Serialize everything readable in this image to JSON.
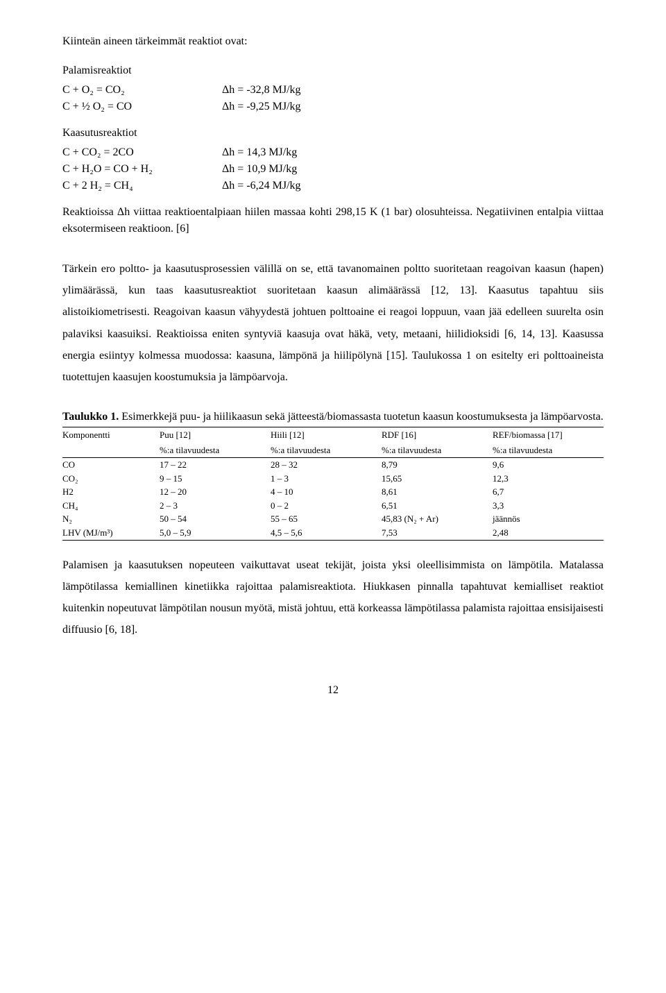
{
  "intro": "Kiinteän aineen tärkeimmät reaktiot ovat:",
  "combustion_heading": "Palamisreaktiot",
  "combustion": [
    {
      "lhs": "C + O₂ = CO₂",
      "rhs": "Δh = -32,8 MJ/kg"
    },
    {
      "lhs": "C + ½ O₂ = CO",
      "rhs": "Δh = -9,25 MJ/kg"
    }
  ],
  "gasif_heading": "Kaasutusreaktiot",
  "gasif": [
    {
      "lhs": "C + CO₂ = 2CO",
      "rhs": "Δh = 14,3 MJ/kg"
    },
    {
      "lhs": "C + H₂O = CO + H₂",
      "rhs": "Δh = 10,9 MJ/kg"
    },
    {
      "lhs": "C + 2 H₂ = CH₄",
      "rhs": "Δh = -6,24 MJ/kg"
    }
  ],
  "para_after_rx": "Reaktioissa Δh viittaa reaktioentalpiaan hiilen massaa kohti 298,15 K (1 bar) olosuhteissa. Negatiivinen entalpia viittaa eksotermiseen reaktioon. [6]",
  "para_main": "Tärkein ero poltto- ja kaasutusprosessien välillä on se, että tavanomainen poltto suoritetaan reagoivan kaasun (hapen) ylimäärässä, kun taas kaasutusreaktiot suoritetaan kaasun alimäärässä [12, 13]. Kaasutus tapahtuu siis alistoikiometrisesti. Reagoivan kaasun vähyydestä johtuen polttoaine ei reagoi loppuun, vaan jää edelleen suurelta osin palaviksi kaasuiksi. Reaktioissa eniten syntyviä kaasuja ovat häkä, vety, metaani, hiilidioksidi [6, 14, 13]. Kaasussa energia esiintyy kolmessa muodossa: kaasuna, lämpönä ja hiilipölynä [15]. Taulukossa 1 on esitelty eri polttoaineista tuotettujen kaasujen koostumuksia ja lämpöarvoja.",
  "table_caption_bold": "Taulukko 1.",
  "table_caption_rest": " Esimerkkejä puu- ja hiilikaasun sekä jätteestä/biomassasta tuotetun kaasun koostumuksesta ja lämpöarvosta.",
  "table": {
    "head1": [
      "Komponentti",
      "Puu [12]",
      "Hiili [12]",
      "RDF [16]",
      "REF/biomassa [17]"
    ],
    "head2": [
      "",
      "%:a tilavuudesta",
      "%:a tilavuudesta",
      "%:a tilavuudesta",
      "%:a tilavuudesta"
    ],
    "rows": [
      {
        "c1": "CO",
        "c2": "17 – 22",
        "c3": "28 – 32",
        "c4": "8,79",
        "c5": "9,6"
      },
      {
        "c1": "CO₂",
        "c2": "9 – 15",
        "c3": "1 – 3",
        "c4": "15,65",
        "c5": "12,3"
      },
      {
        "c1": "H2",
        "c2": "12 – 20",
        "c3": "4 – 10",
        "c4": "8,61",
        "c5": "6,7"
      },
      {
        "c1": "CH₄",
        "c2": "2 – 3",
        "c3": "0 – 2",
        "c4": "6,51",
        "c5": "3,3"
      },
      {
        "c1": "N₂",
        "c2": "50 – 54",
        "c3": "55 – 65",
        "c4": "45,83   (N₂ + Ar)",
        "c5": "jäännös"
      },
      {
        "c1": "LHV (MJ/m³)",
        "c2": "5,0 – 5,9",
        "c3": "4,5 – 5,6",
        "c4": "7,53",
        "c5": "2,48"
      }
    ]
  },
  "para_end": "Palamisen ja kaasutuksen nopeuteen vaikuttavat useat tekijät, joista yksi oleellisimmista on lämpötila. Matalassa lämpötilassa kemiallinen kinetiikka rajoittaa palamisreaktiota. Hiukkasen pinnalla tapahtuvat kemialliset reaktiot kuitenkin nopeutuvat lämpötilan nousun myötä, mistä johtuu, että korkeassa lämpötilassa palamista rajoittaa ensisijaisesti diffuusio [6, 18].",
  "page_number": "12"
}
